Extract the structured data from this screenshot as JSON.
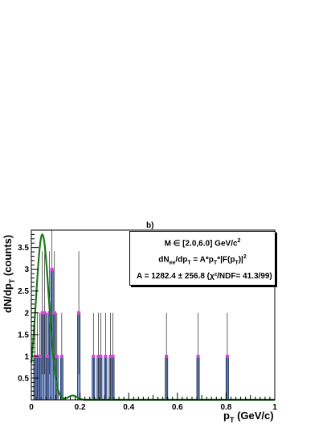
{
  "panel_label": "b)",
  "legend": {
    "mass_range": {
      "prefix": "M ∈ [2.0,6.0] GeV/c",
      "sup": "2"
    },
    "fit_formula": {
      "p1": "dN",
      "p1_sub": "ee",
      "p2": "/dp",
      "p2_sub": "T",
      "p3": " = A*p",
      "p3_sub": "T",
      "p4": "*|F(p",
      "p4_sub": "T",
      "p5": ")|",
      "p5_sup": "2"
    },
    "fit_result": "A = 1282.4 ± 256.8 (χ²/NDF= 41.3/99)"
  },
  "chart_data": {
    "type": "bar",
    "xlabel": "p",
    "xlabel_sub": "T",
    "xlabel_unit": " (GeV/c)",
    "ylabel": "dN/dp",
    "ylabel_sub": "T",
    "ylabel_unit": " (counts)",
    "xlim": [
      0,
      1
    ],
    "ylim": [
      0,
      3.9
    ],
    "bin_width": 0.01,
    "x_major_ticks": [
      0,
      0.2,
      0.4,
      0.6,
      0.8,
      1
    ],
    "x_tick_labels": [
      "0",
      "0.2",
      "0.4",
      "0.6",
      "0.8",
      "1"
    ],
    "y_major_ticks": [
      0.5,
      1,
      1.5,
      2,
      2.5,
      3,
      3.5
    ],
    "y_tick_labels": [
      "0.5",
      "1",
      "1.5",
      "2",
      "2.5",
      "3",
      "3.5"
    ],
    "histogram": [
      {
        "x": 0.015,
        "y": 1
      },
      {
        "x": 0.025,
        "y": 1
      },
      {
        "x": 0.035,
        "y": 1
      },
      {
        "x": 0.045,
        "y": 2
      },
      {
        "x": 0.055,
        "y": 2
      },
      {
        "x": 0.065,
        "y": 1
      },
      {
        "x": 0.075,
        "y": 2
      },
      {
        "x": 0.085,
        "y": 3
      },
      {
        "x": 0.095,
        "y": 2
      },
      {
        "x": 0.105,
        "y": 1
      },
      {
        "x": 0.125,
        "y": 1
      },
      {
        "x": 0.195,
        "y": 2
      },
      {
        "x": 0.255,
        "y": 1
      },
      {
        "x": 0.275,
        "y": 1
      },
      {
        "x": 0.285,
        "y": 1
      },
      {
        "x": 0.305,
        "y": 1
      },
      {
        "x": 0.325,
        "y": 1
      },
      {
        "x": 0.335,
        "y": 1
      },
      {
        "x": 0.555,
        "y": 1
      },
      {
        "x": 0.685,
        "y": 1
      },
      {
        "x": 0.805,
        "y": 1
      }
    ],
    "fit_curve": {
      "peak_x": 0.045,
      "peak_y": 3.8,
      "sigma": 0.026,
      "tail_end": 0.13,
      "bump_x": 0.17,
      "bump_y": 0.1,
      "bump_sigma": 0.018
    },
    "colors": {
      "bar_fill": "#8fa8d8",
      "bar_edge": "#2b3f78",
      "marker": "#e040e0",
      "error_bar": "#000000",
      "fit_line": "#1a7a1a"
    }
  }
}
